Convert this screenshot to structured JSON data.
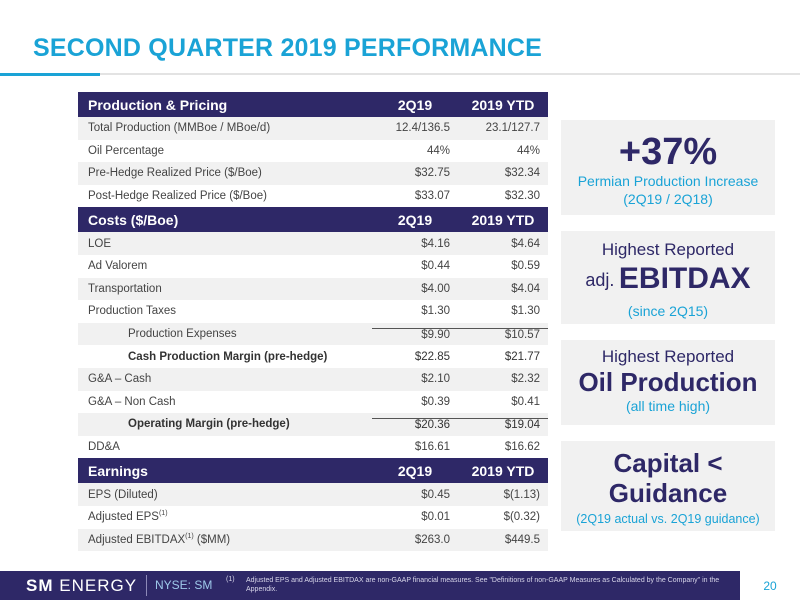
{
  "title": "SECOND QUARTER 2019 PERFORMANCE",
  "sections": [
    {
      "header": [
        "Production & Pricing",
        "2Q19",
        "2019 YTD"
      ],
      "rows": [
        [
          "Total Production (MMBoe / MBoe/d)",
          "12.4/136.5",
          "23.1/127.7"
        ],
        [
          "Oil Percentage",
          "44%",
          "44%"
        ],
        [
          "Pre-Hedge Realized Price ($/Boe)",
          "$32.75",
          "$32.34"
        ],
        [
          "Post-Hedge Realized Price ($/Boe)",
          "$33.07",
          "$32.30"
        ]
      ]
    },
    {
      "header": [
        "Costs ($/Boe)",
        "2Q19",
        "2019 YTD"
      ],
      "rows": [
        [
          "LOE",
          "$4.16",
          "$4.64"
        ],
        [
          "Ad Valorem",
          "$0.44",
          "$0.59"
        ],
        [
          "Transportation",
          "$4.00",
          "$4.04"
        ],
        [
          "Production Taxes",
          "$1.30",
          "$1.30"
        ],
        [
          "Production Expenses",
          "$9.90",
          "$10.57"
        ],
        [
          "Cash Production Margin (pre-hedge)",
          "$22.85",
          "$21.77"
        ],
        [
          "G&A – Cash",
          "$2.10",
          "$2.32"
        ],
        [
          "G&A – Non Cash",
          "$0.39",
          "$0.41"
        ],
        [
          "Operating Margin (pre-hedge)",
          "$20.36",
          "$19.04"
        ],
        [
          "DD&A",
          "$16.61",
          "$16.62"
        ]
      ]
    },
    {
      "header": [
        "Earnings",
        "2Q19",
        "2019 YTD"
      ],
      "rows": [
        [
          "EPS (Diluted)",
          "$0.45",
          "$(1.13)"
        ],
        [
          "Adjusted EPS",
          "$0.01",
          "$(0.32)"
        ],
        [
          "Adjusted EBITDAX",
          "$263.0",
          "$449.5"
        ]
      ],
      "sup": "(1)",
      "ebitdax_suffix": " ($MM)"
    }
  ],
  "callouts": {
    "permian": {
      "value": "+37%",
      "line1": "Permian Production Increase",
      "line2": "(2Q19 / 2Q18)"
    },
    "ebitdax": {
      "line1": "Highest Reported",
      "prefix": "adj.",
      "big": "EBITDAX",
      "line3": "(since 2Q15)"
    },
    "oil": {
      "line1": "Highest Reported",
      "big": "Oil Production",
      "line3": "(all time high)"
    },
    "capital": {
      "line1": "Capital <",
      "line2": "Guidance",
      "line3": "(2Q19 actual vs. 2Q19 guidance)"
    }
  },
  "footer": {
    "logo_bold": "SM",
    "logo_rest": "ENERGY",
    "ticker": "NYSE: SM",
    "footnote_num": "(1)",
    "footnote": "Adjusted EPS and Adjusted EBITDAX are non-GAAP financial measures. See \"Definitions of non-GAAP Measures as Calculated by the Company\" in the Appendix.",
    "page": "20"
  },
  "colors": {
    "navy": "#2e2867",
    "blue": "#1aa3d6",
    "alt_row": "#f1f1f1"
  }
}
